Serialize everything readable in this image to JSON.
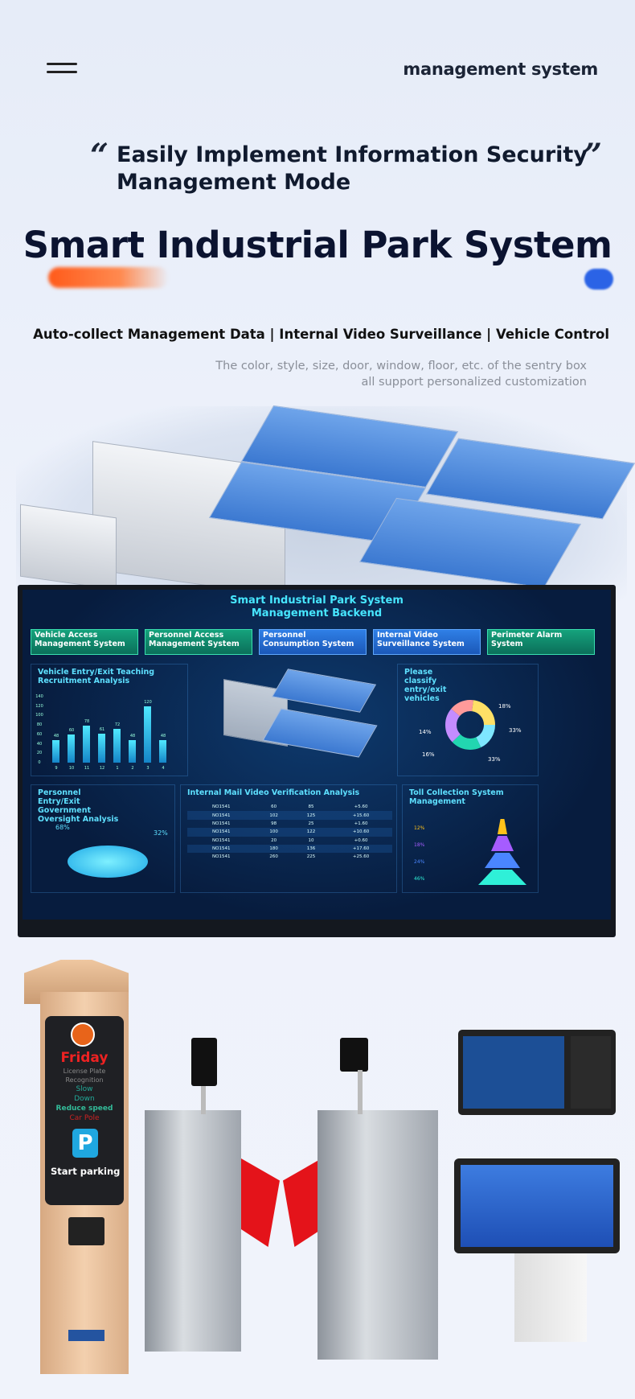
{
  "header": {
    "brand": "management system",
    "menu_icon": "hamburger-icon"
  },
  "hero": {
    "open_quote": "“",
    "close_quote": "”",
    "subtitle_line1": "Easily Implement Information Security",
    "subtitle_line2": "Management Mode",
    "title": "Smart Industrial Park System",
    "tagline": "Auto-collect Management Data | Internal Video Surveillance | Vehicle Control",
    "note_line1": "The color, style, size, door, window, floor, etc. of the sentry box",
    "note_line2": "all support personalized customization"
  },
  "dashboard": {
    "title_line1": "Smart Industrial Park System",
    "title_line2": "Management Backend",
    "tiles": [
      "Vehicle Access Management System",
      "Personnel Access Management System",
      "Personnel Consumption System",
      "Internal Video Surveillance System",
      "Perimeter Alarm System"
    ],
    "panels": {
      "vehicle": "Vehicle Entry/Exit Teaching Recruitment Analysis",
      "classify": "Please classify entry/exit vehicles",
      "personnel": "Personnel Entry/Exit Government Oversight Analysis",
      "mail": "Internal Mail Video Verification Analysis",
      "toll": "Toll Collection System Management"
    },
    "pie": {
      "a": "68%",
      "b": "32%"
    },
    "donut": [
      "18%",
      "33%",
      "33%",
      "16%",
      "14%"
    ],
    "pyramid": [
      "12%",
      "18%",
      "24%",
      "46%"
    ],
    "table": {
      "rows": [
        [
          "NO1541",
          "60",
          "85",
          "+5.60"
        ],
        [
          "NO1541",
          "102",
          "125",
          "+15.60"
        ],
        [
          "NO1541",
          "98",
          "25",
          "+1.60"
        ],
        [
          "NO1541",
          "100",
          "122",
          "+10.60"
        ],
        [
          "NO1541",
          "20",
          "10",
          "+0.60"
        ],
        [
          "NO1541",
          "180",
          "136",
          "+17.60"
        ],
        [
          "NO1541",
          "260",
          "225",
          "+25.60"
        ]
      ]
    }
  },
  "chart_data": {
    "type": "bar",
    "categories": [
      "9",
      "10",
      "11",
      "12",
      "1",
      "2",
      "3",
      "4"
    ],
    "values": [
      48,
      60,
      78,
      61,
      72,
      48,
      120,
      48
    ],
    "ylim": [
      0,
      140
    ],
    "yticks": [
      "0",
      "20",
      "40",
      "60",
      "80",
      "100",
      "120",
      "140"
    ]
  },
  "kiosk": {
    "day": "Friday",
    "line1": "License Plate",
    "line2": "Recognition",
    "slow": "Slow",
    "down": "Down",
    "reduce": "Reduce speed",
    "pole": "Car Pole",
    "start": "Start parking",
    "parking_icon": "P"
  }
}
